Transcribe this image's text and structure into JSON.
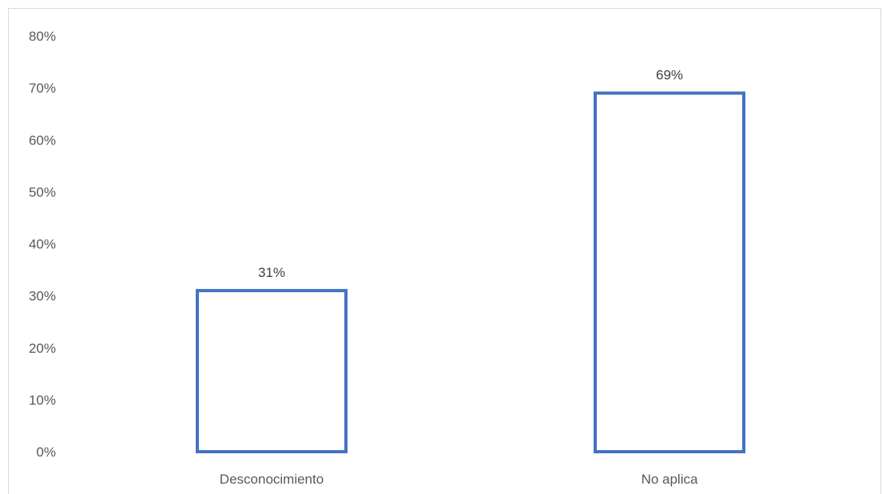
{
  "chart_data": {
    "type": "bar",
    "categories": [
      "Desconocimiento",
      "No aplica"
    ],
    "values": [
      31,
      69
    ],
    "value_labels": [
      "31%",
      "69%"
    ],
    "ylim": [
      0,
      80
    ],
    "y_ticks": [
      0,
      10,
      20,
      30,
      40,
      50,
      60,
      70,
      80
    ],
    "y_tick_labels": [
      "0%",
      "10%",
      "20%",
      "30%",
      "40%",
      "50%",
      "60%",
      "70%",
      "80%"
    ],
    "title": "",
    "xlabel": "",
    "ylabel": "",
    "grid": false,
    "legend": "none",
    "bar_style": "outline",
    "bar_color": "#4472c4"
  }
}
